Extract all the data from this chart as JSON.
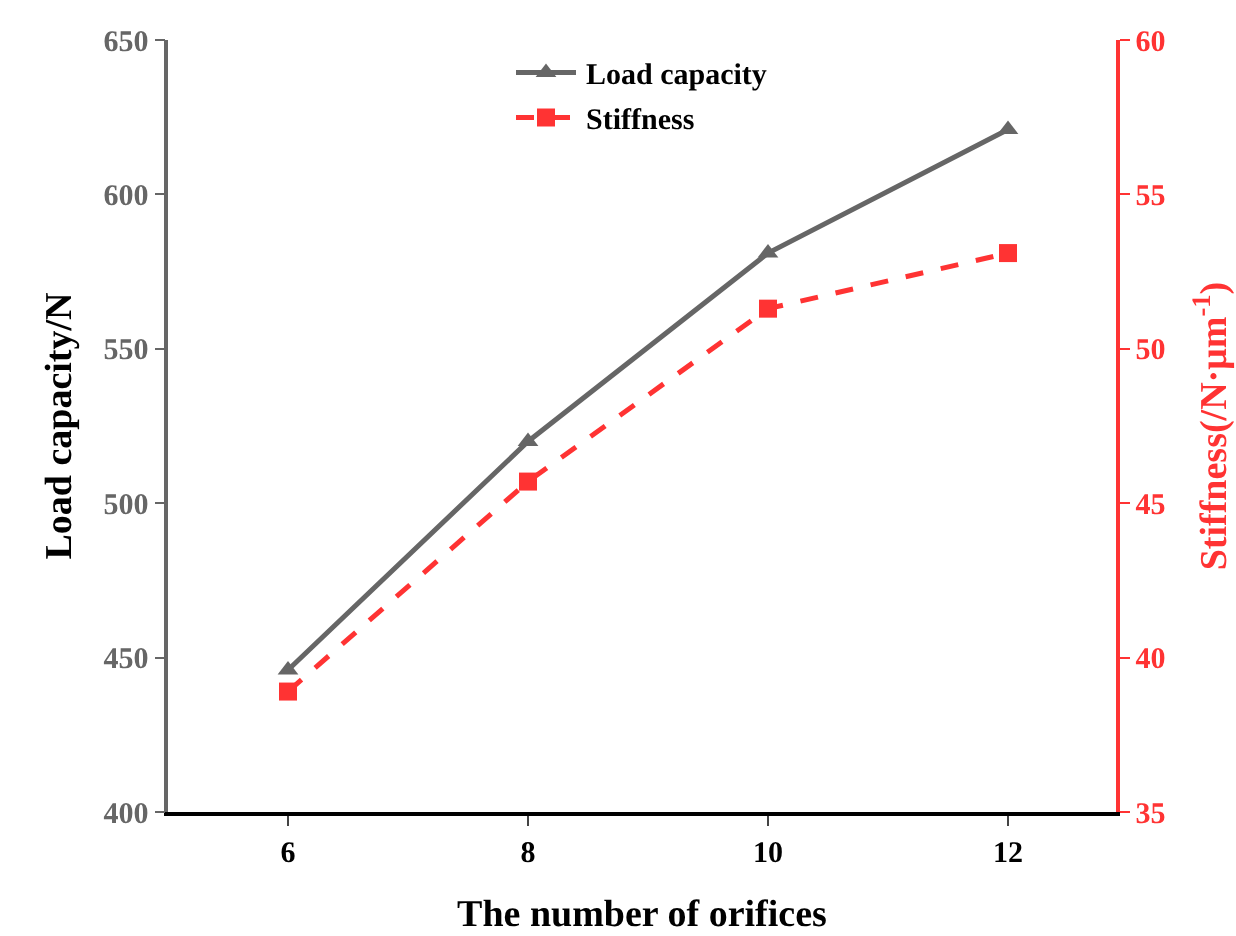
{
  "chart_data": {
    "type": "line",
    "xlabel": "The number of orifices",
    "ylabel": "Load capacity/N",
    "y2label": "Stiffness(/N·μm$^{-1}$)",
    "x": [
      6,
      8,
      10,
      12
    ],
    "series": [
      {
        "name": "Load capacity",
        "color": "#666666",
        "values": [
          446,
          520,
          581,
          621
        ],
        "marker": "triangle",
        "line_style": "solid"
      },
      {
        "name": "Stiffness",
        "color": "#ff3333",
        "values": [
          38.9,
          45.7,
          51.3,
          53.1
        ],
        "marker": "square",
        "line_style": "dashed",
        "axis": "y2"
      }
    ],
    "xlim": [
      5,
      12.9
    ],
    "xticks": [
      6,
      8,
      10,
      12
    ],
    "ylim": [
      400,
      650
    ],
    "yticks": [
      400,
      450,
      500,
      550,
      600,
      650
    ],
    "y2lim": [
      35,
      60
    ],
    "y2ticks": [
      35,
      40,
      45,
      50,
      55,
      60
    ],
    "grid": false,
    "legend": "top"
  }
}
